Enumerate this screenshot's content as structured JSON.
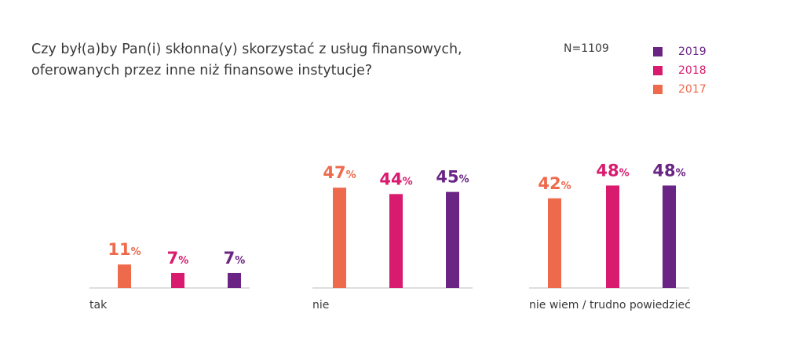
{
  "header": {
    "title_line1": "Czy był(a)by Pan(i) skłonna(y) skorzystać z usług finansowych,",
    "title_line2": "oferowanych przez inne niż finansowe instytucje?",
    "sample_size": "N=1109"
  },
  "legend": [
    {
      "label": "2019",
      "color": "#6a2484"
    },
    {
      "label": "2018",
      "color": "#d81b6e"
    },
    {
      "label": "2017",
      "color": "#ee6a4c"
    }
  ],
  "chart_data": {
    "type": "bar",
    "title": "Czy był(a)by Pan(i) skłonna(y) skorzystać z usług finansowych, oferowanych przez inne niż finansowe instytucje?",
    "categories": [
      "tak",
      "nie",
      "nie wiem / trudno powiedzieć"
    ],
    "series": [
      {
        "name": "2017",
        "color": "#ee6a4c",
        "values": [
          11,
          47,
          42
        ]
      },
      {
        "name": "2018",
        "color": "#d81b6e",
        "values": [
          7,
          44,
          48
        ]
      },
      {
        "name": "2019",
        "color": "#6a2484",
        "values": [
          7,
          45,
          48
        ]
      }
    ],
    "value_suffix": "%",
    "ylim": [
      0,
      50
    ],
    "grid": false,
    "legend_position": "top-right"
  }
}
